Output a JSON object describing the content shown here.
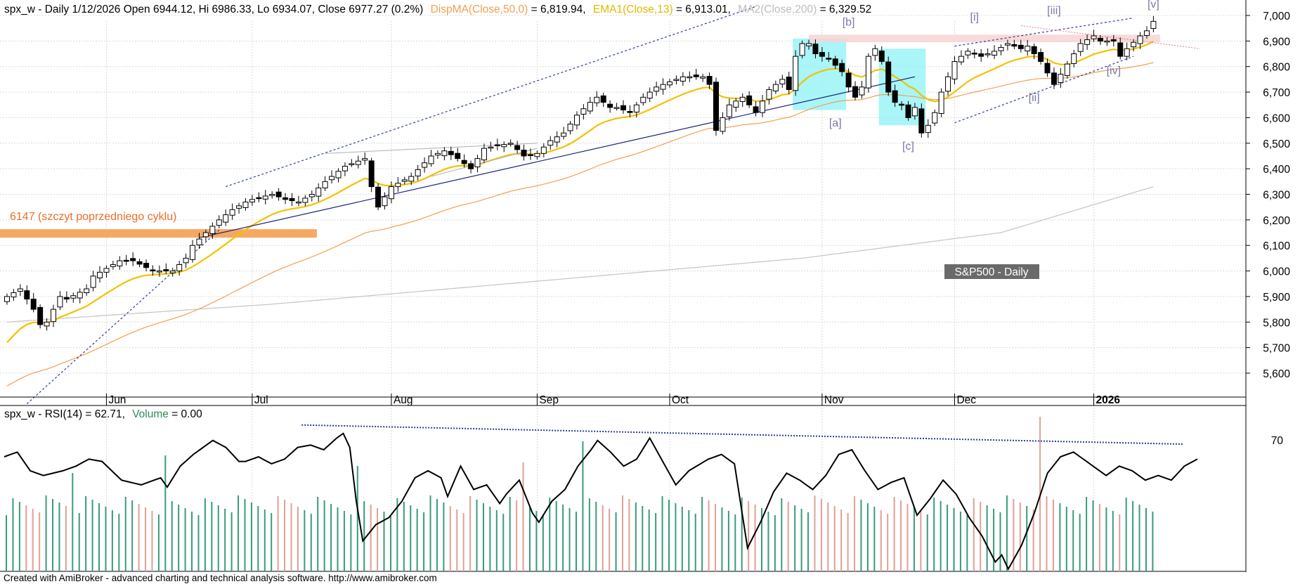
{
  "colors": {
    "background": "#ffffff",
    "grid": "#d9d9d9",
    "bull_candle": "#ffffff",
    "bear_candle": "#000000",
    "ema13": "#f2c200",
    "ma50": "#f0a050",
    "ma200": "#c4c4c4",
    "trendline": "#1a237e",
    "channel": "#2c3b9a",
    "resistance_band": "#f6a862",
    "resistance_text": "#e8702a",
    "pink_band": "#f6d4d4",
    "cyan_box": "#8ef2f6",
    "wave_label": "#7a7aa6",
    "rsi_line": "#000000",
    "vol_up": "#3a9b7a",
    "vol_down": "#e0a094",
    "footer_text": "#000000"
  },
  "header": {
    "prefix": "spx_w - Daily 1/12/2026 Open 6944.12, Hi 6986.33, Lo 6934.07, Close 6977.27 (0.2%)",
    "dispma_label": "DispMA(Close,50,0)",
    "dispma_value": " = 6,819.94,",
    "ema_label": "EMA1(Close,13)",
    "ema_value": " = 6,913.01,",
    "ma2_label": "MA2(Close,200)",
    "ma2_value": " = 6,329.52"
  },
  "rsi_header": {
    "prefix": "spx_w - RSI(14) = 62.71,",
    "volume_label": "Volume",
    "volume_value": " = 0.00"
  },
  "footer": "Created with AmiBroker - advanced charting and technical analysis software. http://www.amibroker.com",
  "annotations": {
    "resistance_label": "6147 (szczyt poprzedniego cyklu)",
    "series_box": "S&P500 - Daily"
  },
  "chart_data": [
    {
      "type": "candlestick",
      "title": "S&P500 - Daily",
      "ylim": [
        5500,
        7050
      ],
      "y_ticks": [
        5600,
        5700,
        5800,
        5900,
        6000,
        6100,
        6200,
        6300,
        6400,
        6500,
        6600,
        6700,
        6800,
        6900,
        7000
      ],
      "y_tick_labels": [
        "5,600",
        "5,700",
        "5,800",
        "5,900",
        "6,000",
        "6,100",
        "6,200",
        "6,300",
        "6,400",
        "6,500",
        "6,600",
        "6,700",
        "6,800",
        "6,900",
        "7,000"
      ],
      "x_months": [
        {
          "label": "Jun",
          "bar": 15
        },
        {
          "label": "Jul",
          "bar": 37
        },
        {
          "label": "Aug",
          "bar": 58
        },
        {
          "label": "Sep",
          "bar": 80
        },
        {
          "label": "Oct",
          "bar": 100
        },
        {
          "label": "Nov",
          "bar": 123
        },
        {
          "label": "Dec",
          "bar": 143
        },
        {
          "label": "2026",
          "bar": 164
        }
      ],
      "bar_count": 174,
      "close_anchors": [
        [
          0,
          5900
        ],
        [
          2,
          5930
        ],
        [
          4,
          5850
        ],
        [
          5,
          5790
        ],
        [
          6,
          5800
        ],
        [
          8,
          5900
        ],
        [
          9,
          5890
        ],
        [
          12,
          5930
        ],
        [
          13,
          5980
        ],
        [
          17,
          6040
        ],
        [
          19,
          6040
        ],
        [
          22,
          6000
        ],
        [
          25,
          6000
        ],
        [
          27,
          6050
        ],
        [
          28,
          6100
        ],
        [
          30,
          6150
        ],
        [
          32,
          6200
        ],
        [
          34,
          6240
        ],
        [
          36,
          6270
        ],
        [
          37,
          6280
        ],
        [
          40,
          6300
        ],
        [
          42,
          6280
        ],
        [
          44,
          6270
        ],
        [
          46,
          6300
        ],
        [
          48,
          6350
        ],
        [
          51,
          6410
        ],
        [
          53,
          6430
        ],
        [
          54,
          6440
        ],
        [
          55,
          6330
        ],
        [
          56,
          6250
        ],
        [
          58,
          6330
        ],
        [
          61,
          6370
        ],
        [
          64,
          6450
        ],
        [
          66,
          6470
        ],
        [
          68,
          6440
        ],
        [
          70,
          6400
        ],
        [
          72,
          6480
        ],
        [
          74,
          6490
        ],
        [
          76,
          6500
        ],
        [
          78,
          6450
        ],
        [
          80,
          6460
        ],
        [
          82,
          6510
        ],
        [
          84,
          6540
        ],
        [
          86,
          6610
        ],
        [
          88,
          6660
        ],
        [
          89,
          6680
        ],
        [
          91,
          6640
        ],
        [
          92,
          6640
        ],
        [
          94,
          6620
        ],
        [
          96,
          6680
        ],
        [
          98,
          6720
        ],
        [
          100,
          6740
        ],
        [
          102,
          6760
        ],
        [
          105,
          6760
        ],
        [
          106,
          6730
        ],
        [
          107,
          6550
        ],
        [
          109,
          6650
        ],
        [
          111,
          6680
        ],
        [
          113,
          6620
        ],
        [
          115,
          6710
        ],
        [
          117,
          6750
        ],
        [
          118,
          6710
        ],
        [
          119,
          6840
        ],
        [
          120,
          6890
        ],
        [
          121,
          6890
        ],
        [
          122,
          6850
        ],
        [
          124,
          6830
        ],
        [
          126,
          6780
        ],
        [
          127,
          6720
        ],
        [
          128,
          6680
        ],
        [
          129,
          6720
        ],
        [
          130,
          6840
        ],
        [
          131,
          6870
        ],
        [
          132,
          6820
        ],
        [
          133,
          6700
        ],
        [
          134,
          6660
        ],
        [
          135,
          6650
        ],
        [
          136,
          6600
        ],
        [
          137,
          6640
        ],
        [
          138,
          6540
        ],
        [
          139,
          6570
        ],
        [
          140,
          6620
        ],
        [
          141,
          6700
        ],
        [
          142,
          6760
        ],
        [
          143,
          6820
        ],
        [
          145,
          6860
        ],
        [
          147,
          6840
        ],
        [
          149,
          6860
        ],
        [
          151,
          6890
        ],
        [
          153,
          6870
        ],
        [
          154,
          6880
        ],
        [
          156,
          6820
        ],
        [
          158,
          6730
        ],
        [
          160,
          6810
        ],
        [
          162,
          6890
        ],
        [
          164,
          6920
        ],
        [
          165,
          6900
        ],
        [
          167,
          6900
        ],
        [
          168,
          6840
        ],
        [
          169,
          6870
        ],
        [
          171,
          6920
        ],
        [
          172,
          6940
        ],
        [
          173,
          6977
        ]
      ],
      "ema13_label": "EMA1(Close,13)",
      "ma50_label": "DispMA(Close,50,0)",
      "ma200_label": "MA2(Close,200)",
      "ma200_anchors": [
        [
          0,
          5800
        ],
        [
          40,
          5870
        ],
        [
          80,
          5960
        ],
        [
          120,
          6050
        ],
        [
          150,
          6150
        ],
        [
          173,
          6330
        ]
      ],
      "resistance": {
        "value": 6147,
        "bar_start": 0,
        "bar_end": 44
      },
      "wave_labels": [
        {
          "label": "[a]",
          "bar": 125,
          "price": 6565
        },
        {
          "label": "[b]",
          "bar": 127,
          "price": 6960
        },
        {
          "label": "[c]",
          "bar": 136,
          "price": 6475
        },
        {
          "label": "[i]",
          "bar": 146,
          "price": 6980
        },
        {
          "label": "[ii]",
          "bar": 155,
          "price": 6665
        },
        {
          "label": "[iii]",
          "bar": 158,
          "price": 7005
        },
        {
          "label": "[iv]",
          "bar": 167,
          "price": 6770
        },
        {
          "label": "[v]",
          "bar": 173,
          "price": 7030
        }
      ]
    },
    {
      "type": "line",
      "title": "RSI(14)",
      "rsi_value": 62.71,
      "y_tick_labels": [
        "70"
      ],
      "rsi_anchors": [
        [
          0,
          64
        ],
        [
          2,
          66
        ],
        [
          4,
          58
        ],
        [
          6,
          56
        ],
        [
          9,
          58
        ],
        [
          11,
          60
        ],
        [
          13,
          63
        ],
        [
          15,
          62
        ],
        [
          18,
          54
        ],
        [
          21,
          52
        ],
        [
          24,
          55
        ],
        [
          25,
          51
        ],
        [
          27,
          60
        ],
        [
          29,
          65
        ],
        [
          32,
          71
        ],
        [
          34,
          68
        ],
        [
          36,
          62
        ],
        [
          37,
          62
        ],
        [
          39,
          64
        ],
        [
          41,
          61
        ],
        [
          43,
          63
        ],
        [
          45,
          68
        ],
        [
          47,
          69
        ],
        [
          49,
          67
        ],
        [
          51,
          72
        ],
        [
          52,
          74
        ],
        [
          53,
          68
        ],
        [
          54,
          45
        ],
        [
          55,
          28
        ],
        [
          57,
          35
        ],
        [
          59,
          38
        ],
        [
          61,
          45
        ],
        [
          63,
          55
        ],
        [
          65,
          58
        ],
        [
          67,
          55
        ],
        [
          68,
          47
        ],
        [
          70,
          60
        ],
        [
          72,
          50
        ],
        [
          74,
          52
        ],
        [
          76,
          44
        ],
        [
          77,
          48
        ],
        [
          79,
          54
        ],
        [
          81,
          40
        ],
        [
          82,
          36
        ],
        [
          84,
          45
        ],
        [
          86,
          50
        ],
        [
          88,
          60
        ],
        [
          90,
          67
        ],
        [
          91,
          71
        ],
        [
          93,
          66
        ],
        [
          95,
          60
        ],
        [
          97,
          63
        ],
        [
          99,
          72
        ],
        [
          101,
          62
        ],
        [
          103,
          52
        ],
        [
          105,
          58
        ],
        [
          108,
          63
        ],
        [
          110,
          65
        ],
        [
          112,
          61
        ],
        [
          114,
          25
        ],
        [
          116,
          36
        ],
        [
          118,
          49
        ],
        [
          120,
          57
        ],
        [
          122,
          54
        ],
        [
          124,
          50
        ],
        [
          126,
          56
        ],
        [
          128,
          65
        ],
        [
          130,
          67
        ],
        [
          132,
          58
        ],
        [
          134,
          50
        ],
        [
          136,
          53
        ],
        [
          138,
          55
        ],
        [
          140,
          39
        ],
        [
          142,
          46
        ],
        [
          144,
          54
        ],
        [
          146,
          48
        ],
        [
          148,
          38
        ],
        [
          150,
          30
        ],
        [
          152,
          19
        ],
        [
          153,
          22
        ],
        [
          154,
          16
        ],
        [
          156,
          26
        ],
        [
          158,
          40
        ],
        [
          160,
          57
        ],
        [
          162,
          64
        ],
        [
          164,
          66
        ],
        [
          166,
          62
        ],
        [
          168,
          58
        ],
        [
          169,
          56
        ],
        [
          171,
          60
        ],
        [
          173,
          58
        ],
        [
          175,
          54
        ],
        [
          177,
          56
        ],
        [
          179,
          54
        ],
        [
          181,
          60
        ],
        [
          183,
          63
        ]
      ]
    }
  ]
}
